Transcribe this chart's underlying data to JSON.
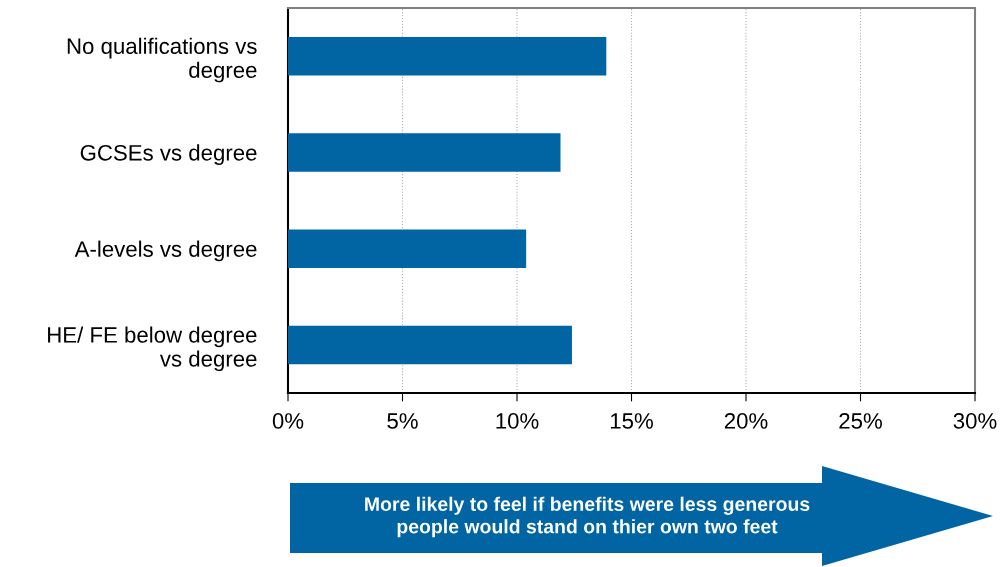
{
  "chart_data": {
    "type": "bar",
    "orientation": "horizontal",
    "categories": [
      "No qualifications vs\ndegree",
      "GCSEs vs degree",
      "A-levels vs degree",
      "HE/ FE below degree\nvs degree"
    ],
    "values": [
      13.9,
      11.9,
      10.4,
      12.4
    ],
    "color": "#0065a2",
    "xlim": [
      0,
      30
    ],
    "xticks": [
      {
        "value": 0,
        "label": "0%"
      },
      {
        "value": 5,
        "label": "5%"
      },
      {
        "value": 10,
        "label": "10%"
      },
      {
        "value": 15,
        "label": "15%"
      },
      {
        "value": 20,
        "label": "20%"
      },
      {
        "value": 25,
        "label": "25%"
      },
      {
        "value": 30,
        "label": "30%"
      }
    ],
    "grid": "x",
    "legend": false,
    "annotations": [
      "More likely to feel if benefits were less generous\npeople would stand on thier own two feet"
    ]
  }
}
